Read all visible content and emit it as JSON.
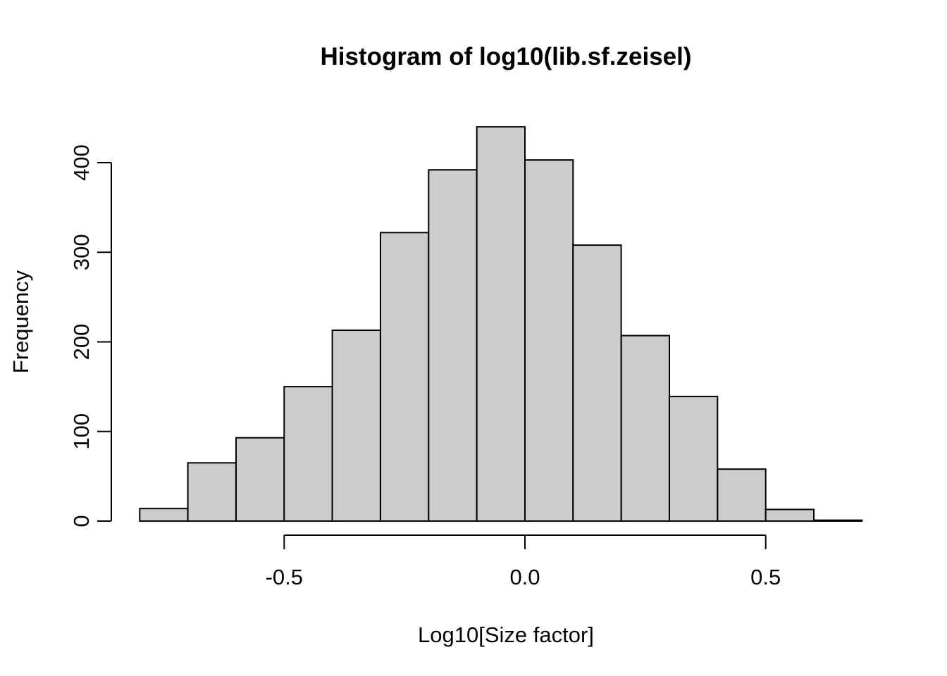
{
  "figure": {
    "background": "#FFFFFF"
  },
  "chart_data": {
    "type": "bar",
    "subtype": "histogram",
    "title": "Histogram of log10(lib.sf.zeisel)",
    "xlabel": "Log10[Size factor]",
    "ylabel": "Frequency",
    "bin_edges": [
      -0.8,
      -0.7,
      -0.6,
      -0.5,
      -0.4,
      -0.3,
      -0.2,
      -0.1,
      0.0,
      0.1,
      0.2,
      0.3,
      0.4,
      0.5,
      0.6,
      0.7
    ],
    "counts": [
      14,
      65,
      93,
      150,
      213,
      322,
      392,
      440,
      403,
      308,
      207,
      139,
      58,
      13,
      1
    ],
    "x_ticks": [
      {
        "value": -0.5,
        "label": "-0.5"
      },
      {
        "value": 0.0,
        "label": "0.0"
      },
      {
        "value": 0.5,
        "label": "0.5"
      }
    ],
    "y_ticks": [
      {
        "value": 0,
        "label": "0"
      },
      {
        "value": 100,
        "label": "100"
      },
      {
        "value": 200,
        "label": "200"
      },
      {
        "value": 300,
        "label": "300"
      },
      {
        "value": 400,
        "label": "400"
      }
    ],
    "xlim": [
      -0.8,
      0.7
    ],
    "ylim": [
      0,
      440
    ],
    "grid": false,
    "legend": null,
    "bar_fill": "#CCCCCC",
    "bar_stroke": "#000000",
    "axis_color": "#000000",
    "text_color": "#000000"
  }
}
